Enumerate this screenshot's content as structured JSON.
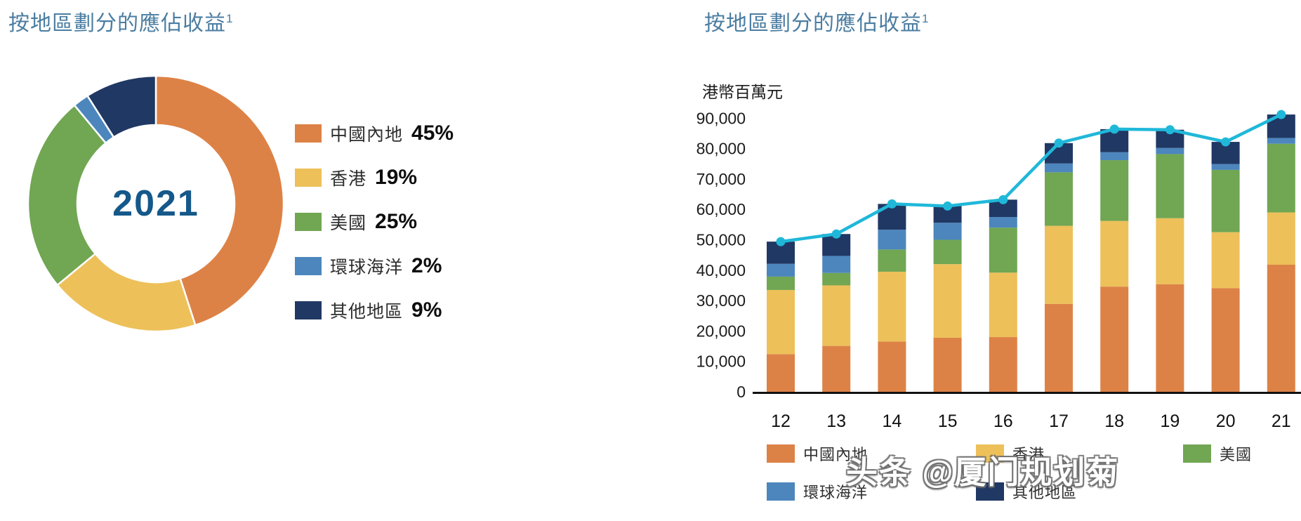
{
  "left_chart": {
    "title": "按地區劃分的應佔收益",
    "title_superscript": "1",
    "center_label": "2021"
  },
  "right_chart": {
    "title": "按地區劃分的應佔收益",
    "title_superscript": "1",
    "unit_label": "港幣百萬元"
  },
  "colors": {
    "mainland_china": "#DD8246",
    "hong_kong": "#EDC05A",
    "usa": "#71A653",
    "global_ocean": "#4C86BD",
    "other_regions": "#203864",
    "total_line": "#20B8D9",
    "title_text": "#4B7DA1",
    "center_year_text": "#15588A",
    "axis_line": "#111111"
  },
  "donut_legend": [
    {
      "label": "中國內地",
      "value": "45%"
    },
    {
      "label": "香港",
      "value": "19%"
    },
    {
      "label": "美國",
      "value": "25%"
    },
    {
      "label": "環球海洋",
      "value": "2%"
    },
    {
      "label": "其他地區",
      "value": "9%"
    }
  ],
  "bar_legend_row1": [
    {
      "label": "中國內地"
    },
    {
      "label": "香港"
    },
    {
      "label": "美國"
    }
  ],
  "bar_legend_row2": [
    {
      "label": "環球海洋"
    },
    {
      "label": "其他地區"
    }
  ],
  "watermark": "头条 @厦门规划菊",
  "chart_data": [
    {
      "type": "pie",
      "subtype": "donut",
      "title": "按地區劃分的應佔收益¹",
      "center_label": "2021",
      "labels": [
        "中國內地",
        "香港",
        "美國",
        "環球海洋",
        "其他地區"
      ],
      "values": [
        45,
        19,
        25,
        2,
        9
      ],
      "unit": "percent",
      "start_angle_deg": 0,
      "direction": "clockwise",
      "legend_position": "right"
    },
    {
      "type": "bar",
      "subtype": "stacked-with-line",
      "title": "按地區劃分的應佔收益¹",
      "ylabel": "港幣百萬元",
      "xlabel": "",
      "categories": [
        "12",
        "13",
        "14",
        "15",
        "16",
        "17",
        "18",
        "19",
        "20",
        "21"
      ],
      "ylim": [
        0,
        90000
      ],
      "ytick_step": 10000,
      "grid": false,
      "legend_position": "bottom",
      "series": [
        {
          "name": "中國內地",
          "values": [
            12400,
            15100,
            16500,
            17800,
            18000,
            28900,
            34600,
            35400,
            34100,
            41800
          ]
        },
        {
          "name": "香港",
          "values": [
            21100,
            19900,
            23000,
            24200,
            21200,
            25700,
            21600,
            21700,
            18400,
            17200
          ]
        },
        {
          "name": "美國",
          "values": [
            4400,
            4100,
            7300,
            8000,
            14800,
            17600,
            20000,
            21100,
            20500,
            22600
          ]
        },
        {
          "name": "環球海洋",
          "values": [
            4200,
            5600,
            6500,
            5600,
            3500,
            2900,
            2600,
            2000,
            1900,
            1900
          ]
        },
        {
          "name": "其他地區",
          "values": [
            7300,
            7200,
            8500,
            5500,
            5700,
            6700,
            7600,
            6000,
            7300,
            7700
          ]
        }
      ],
      "line_series": {
        "name": "total",
        "values": [
          49400,
          51900,
          61800,
          61100,
          63200,
          81800,
          86400,
          86200,
          82200,
          91200
        ]
      }
    }
  ]
}
